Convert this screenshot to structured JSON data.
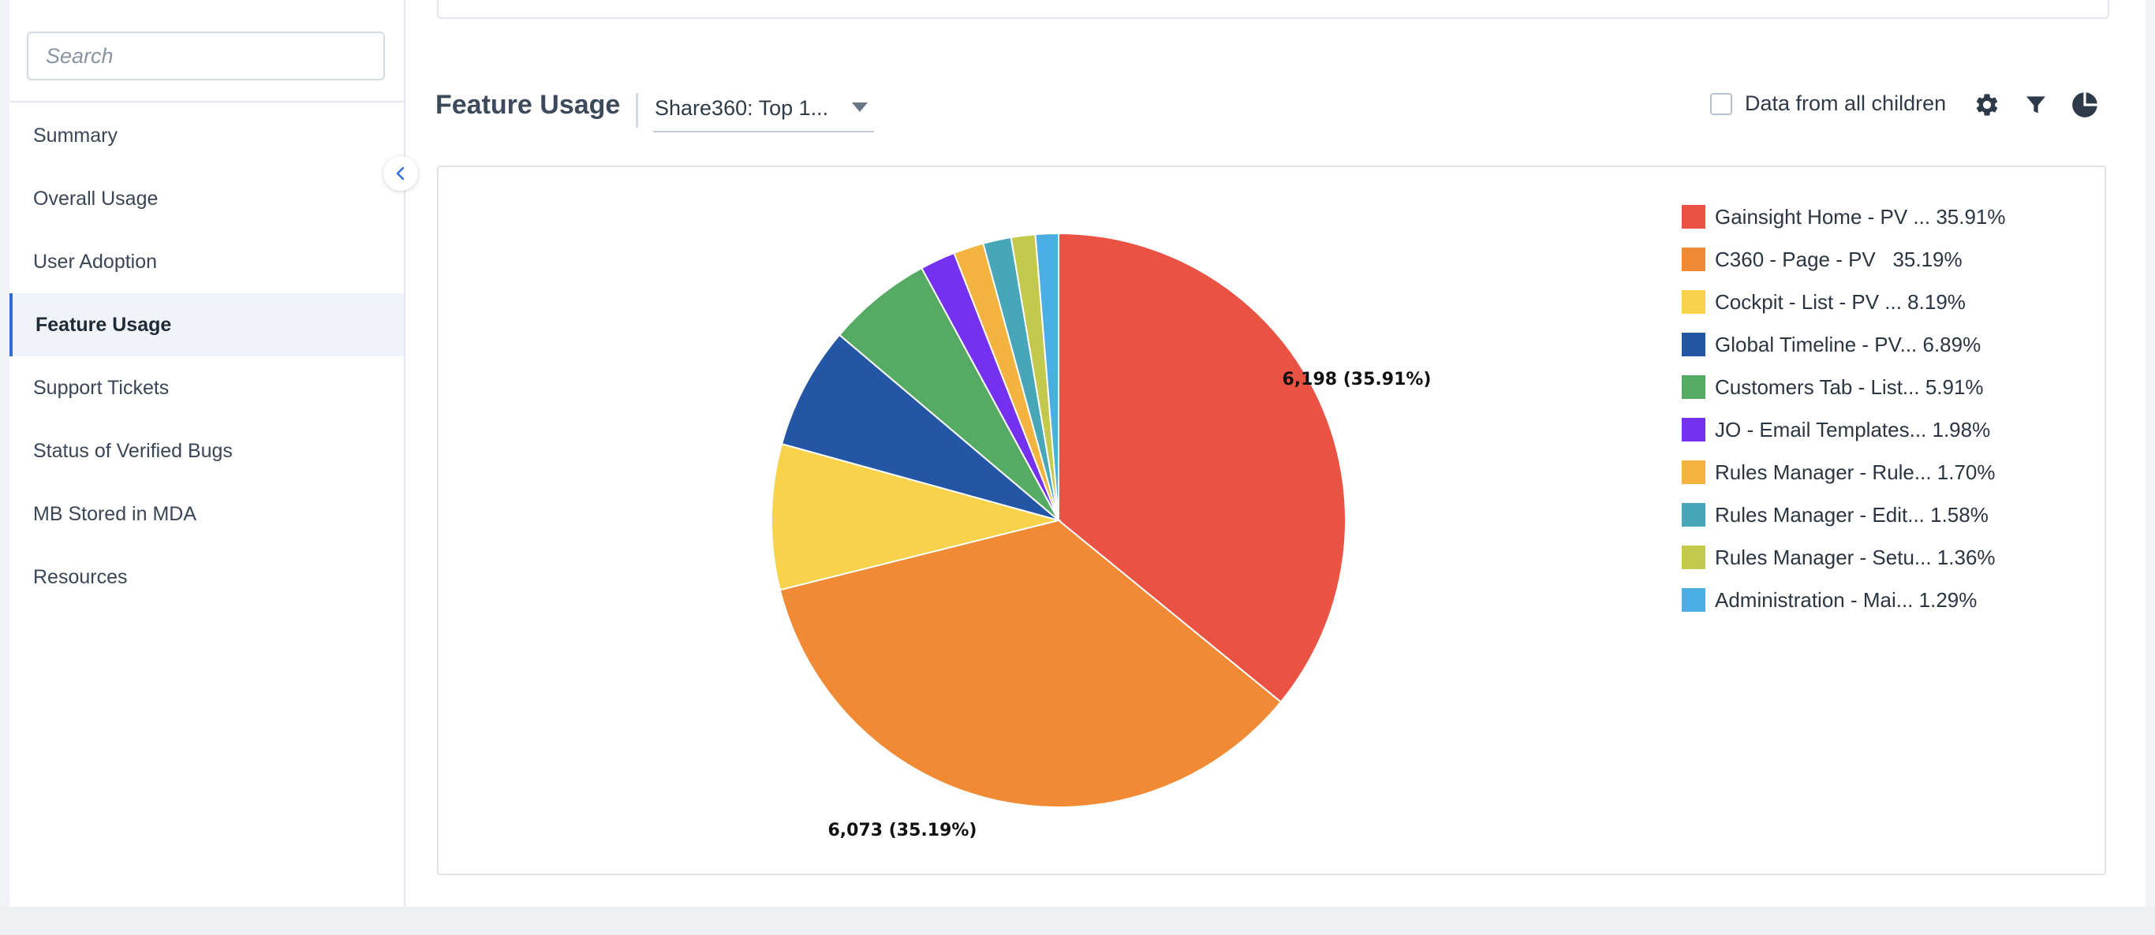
{
  "sidebar": {
    "search_placeholder": "Search",
    "items": [
      {
        "label": "Summary",
        "active": false
      },
      {
        "label": "Overall Usage",
        "active": false
      },
      {
        "label": "User Adoption",
        "active": false
      },
      {
        "label": "Feature Usage",
        "active": true
      },
      {
        "label": "Support Tickets",
        "active": false
      },
      {
        "label": "Status of Verified Bugs",
        "active": false
      },
      {
        "label": "MB Stored in MDA",
        "active": false
      },
      {
        "label": "Resources",
        "active": false
      }
    ],
    "collapse_icon": "chevron-left-icon"
  },
  "header": {
    "title": "Feature Usage",
    "dropdown_value": "Share360: Top 1...",
    "children_checkbox_label": "Data from all children",
    "children_checked": false,
    "icons": [
      "gear-icon",
      "filter-icon",
      "pie-chart-icon"
    ]
  },
  "colors": {
    "accent": "#2f6fd1",
    "icon": "#2f3a48"
  },
  "chart_data": {
    "type": "pie",
    "title": "",
    "slices": [
      {
        "label": "Gainsight Home - PV ...",
        "percent": 35.91,
        "value": 6198,
        "color": "#ea5243",
        "data_label": "6,198 (35.91%)"
      },
      {
        "label": "C360 - Page - PV  ",
        "percent": 35.19,
        "value": 6073,
        "color": "#f08a35",
        "data_label": "6,073 (35.19%)"
      },
      {
        "label": "Cockpit - List - PV ...",
        "percent": 8.19,
        "color": "#f7d24a"
      },
      {
        "label": "Global Timeline - PV...",
        "percent": 6.89,
        "color": "#2456a6"
      },
      {
        "label": "Customers Tab - List...",
        "percent": 5.91,
        "color": "#55ab63"
      },
      {
        "label": "JO - Email Templates...",
        "percent": 1.98,
        "color": "#7431ef"
      },
      {
        "label": "Rules Manager - Rule...",
        "percent": 1.7,
        "color": "#f4b33f"
      },
      {
        "label": "Rules Manager - Edit...",
        "percent": 1.58,
        "color": "#47a7b9"
      },
      {
        "label": "Rules Manager - Setu...",
        "percent": 1.36,
        "color": "#c2c94b"
      },
      {
        "label": "Administration - Mai...",
        "percent": 1.29,
        "color": "#4aaee2"
      }
    ],
    "legend_position": "right"
  }
}
